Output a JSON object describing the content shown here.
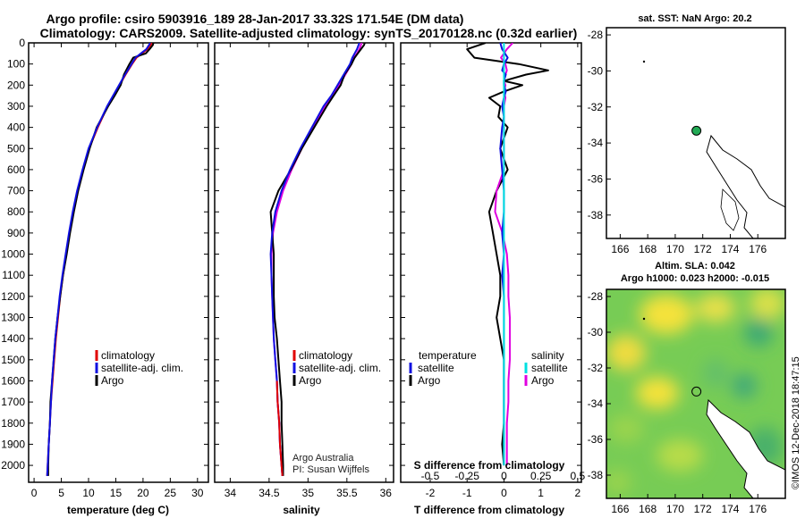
{
  "header": {
    "line1": "Argo profile: csiro 5903916_189 28-Jan-2017 33.32S 171.54E (DM data)",
    "line2": "Climatology: CARS2009. Satellite-adjusted climatology: synTS_20170128.nc (0.32d earlier)"
  },
  "credit": {
    "line1": "Argo Australia",
    "line2": "PI: Susan Wijffels"
  },
  "watermark": "©IMOS 12-Dec-2018 18:47:15",
  "colors": {
    "climatology": "#e00000",
    "satellite": "#1010e0",
    "argo": "#000000",
    "sat_salinity": "#00e0e0",
    "argo_salinity": "#e000e0",
    "land": "#ffffff",
    "marker": "#22aa55"
  },
  "chart_data": [
    {
      "type": "line",
      "id": "temperature",
      "xlabel": "temperature (deg C)",
      "xlim": [
        -1,
        32
      ],
      "ylim": [
        2080,
        0
      ],
      "xticks": [
        "0",
        "5",
        "10",
        "15",
        "20",
        "25",
        "30"
      ],
      "yticks": [
        "0",
        "100",
        "200",
        "300",
        "400",
        "500",
        "600",
        "700",
        "800",
        "900",
        "1000",
        "1100",
        "1200",
        "1300",
        "1400",
        "1500",
        "1600",
        "1700",
        "1800",
        "1900",
        "2000"
      ],
      "depth": [
        0,
        10,
        30,
        50,
        70,
        100,
        150,
        200,
        250,
        300,
        400,
        500,
        600,
        700,
        800,
        900,
        1000,
        1100,
        1200,
        1300,
        1400,
        1500,
        1600,
        1700,
        1800,
        1900,
        2000,
        2050
      ],
      "legend": [
        "climatology",
        "satellite-adj. clim.",
        "Argo"
      ],
      "series": [
        {
          "name": "climatology",
          "values": [
            21.6,
            21.4,
            20.8,
            19.8,
            18.8,
            18.0,
            16.8,
            15.7,
            14.6,
            13.5,
            11.7,
            10.1,
            9.0,
            8.0,
            7.2,
            6.5,
            5.9,
            5.3,
            4.8,
            4.4,
            4.0,
            3.7,
            3.4,
            3.1,
            2.9,
            2.7,
            2.5,
            2.4
          ]
        },
        {
          "name": "satellite-adj. clim.",
          "values": [
            21.3,
            21.1,
            20.6,
            19.6,
            18.6,
            17.9,
            16.7,
            15.6,
            14.5,
            13.4,
            11.6,
            10.0,
            8.9,
            7.9,
            7.1,
            6.4,
            5.8,
            5.2,
            4.7,
            4.3,
            3.9,
            3.6,
            3.3,
            3.1,
            2.9,
            2.7,
            2.5,
            2.4
          ]
        },
        {
          "name": "Argo",
          "values": [
            21.9,
            21.8,
            21.2,
            20.5,
            18.2,
            17.5,
            16.5,
            15.9,
            14.8,
            13.6,
            11.5,
            10.2,
            9.1,
            8.1,
            7.3,
            6.6,
            6.0,
            5.3,
            4.8,
            4.3,
            3.9,
            3.6,
            3.3,
            3.0,
            2.9,
            2.7,
            2.6,
            2.6
          ]
        }
      ]
    },
    {
      "type": "line",
      "id": "salinity",
      "xlabel": "salinity",
      "xlim": [
        33.8,
        36.1
      ],
      "ylim": [
        2080,
        0
      ],
      "xticks": [
        "34",
        "34.5",
        "35",
        "35.5",
        "36"
      ],
      "depth": [
        0,
        10,
        30,
        50,
        70,
        100,
        150,
        200,
        250,
        300,
        400,
        500,
        600,
        700,
        800,
        900,
        1000,
        1100,
        1200,
        1300,
        1400,
        1500,
        1600,
        1700,
        1800,
        1900,
        2000,
        2050
      ],
      "legend": [
        "climatology",
        "satellite-adj. clim.",
        "Argo"
      ],
      "series": [
        {
          "name": "climatology",
          "values": [
            35.69,
            35.68,
            35.66,
            35.63,
            35.59,
            35.56,
            35.48,
            35.4,
            35.32,
            35.22,
            35.07,
            34.92,
            34.79,
            34.68,
            34.6,
            34.55,
            34.53,
            34.53,
            34.54,
            34.55,
            34.56,
            34.58,
            34.6,
            34.61,
            34.63,
            34.64,
            34.66,
            34.67
          ]
        },
        {
          "name": "satellite-adj. clim.",
          "values": [
            35.66,
            35.65,
            35.63,
            35.6,
            35.57,
            35.54,
            35.46,
            35.38,
            35.3,
            35.2,
            35.05,
            34.9,
            34.77,
            34.66,
            34.58,
            34.54,
            34.52,
            34.53,
            34.54,
            34.55,
            34.56,
            34.58,
            34.6,
            34.61,
            34.63,
            34.64,
            34.66,
            34.67
          ]
        },
        {
          "name": "Argo",
          "values": [
            35.73,
            35.72,
            35.68,
            35.64,
            35.6,
            35.56,
            35.47,
            35.42,
            35.33,
            35.24,
            35.08,
            34.92,
            34.78,
            34.62,
            34.52,
            34.54,
            34.56,
            34.56,
            34.56,
            34.57,
            34.6,
            34.62,
            34.64,
            34.66,
            34.66,
            34.67,
            34.68,
            34.68
          ]
        }
      ]
    },
    {
      "type": "line",
      "id": "difference",
      "xlabel": "T difference from climatology",
      "xlabel_s": "S difference from climatology",
      "xlim": [
        -2.8,
        2.1
      ],
      "slim": [
        -0.7,
        0.525
      ],
      "ylim": [
        2080,
        0
      ],
      "xticks": [
        "-2",
        "-1",
        "0",
        "1",
        "2"
      ],
      "sticks": [
        "-0.5",
        "-0.25",
        "0",
        "0.25",
        "0.5"
      ],
      "depth": [
        0,
        30,
        70,
        100,
        130,
        150,
        180,
        200,
        230,
        260,
        300,
        350,
        400,
        500,
        600,
        700,
        800,
        900,
        1000,
        1100,
        1200,
        1300,
        1400,
        1500,
        1600,
        1700,
        1800,
        1900,
        2000
      ],
      "legend_titles": [
        "temperature",
        "salinity"
      ],
      "legend_t": [
        "satellite",
        "Argo"
      ],
      "legend_s": [
        "satellite",
        "Argo"
      ],
      "series": [
        {
          "name": "T satellite",
          "values": [
            -0.1,
            -0.05,
            0.1,
            0.0,
            -0.05,
            0.05,
            0.0,
            0.0,
            0.05,
            0.0,
            -0.05,
            0.0,
            -0.05,
            -0.1,
            -0.05,
            0.0,
            0.0,
            -0.05,
            0.0,
            -0.05,
            0.0,
            0.0,
            0.0,
            0.0,
            0.0,
            0.0,
            0.0,
            0.0,
            0.0
          ]
        },
        {
          "name": "T Argo",
          "values": [
            -0.5,
            -1.0,
            -0.8,
            0.4,
            1.2,
            0.6,
            0.0,
            0.5,
            0.0,
            -0.4,
            -0.1,
            -0.15,
            0.1,
            -0.1,
            0.1,
            -0.2,
            -0.4,
            -0.3,
            -0.2,
            -0.1,
            -0.1,
            -0.2,
            -0.1,
            0.0,
            0.0,
            0.0,
            0.0,
            -0.05,
            0.0
          ]
        },
        {
          "name": "S satellite",
          "values": [
            0.0,
            0.0,
            0.0,
            0.0,
            0.0,
            0.0,
            0.0,
            0.0,
            0.0,
            0.0,
            0.0,
            0.0,
            0.0,
            0.0,
            0.0,
            0.0,
            0.0,
            0.0,
            0.0,
            0.0,
            0.0,
            0.0,
            0.0,
            0.0,
            0.0,
            0.0,
            0.0,
            0.0,
            0.0
          ]
        },
        {
          "name": "S Argo",
          "values": [
            0.06,
            0.02,
            -0.02,
            0.01,
            0.02,
            0.01,
            0.0,
            0.01,
            0.0,
            0.01,
            0.0,
            0.0,
            0.0,
            0.0,
            0.0,
            -0.05,
            -0.06,
            -0.01,
            0.02,
            0.03,
            0.03,
            0.04,
            0.04,
            0.04,
            0.03,
            0.03,
            0.02,
            0.02,
            0.02
          ]
        }
      ]
    },
    {
      "type": "scatter",
      "id": "sst_map",
      "title": "sat. SST: NaN Argo: 20.2",
      "xlim": [
        165,
        178
      ],
      "ylim": [
        -39.3,
        -27.6
      ],
      "xticks": [
        "166",
        "168",
        "170",
        "172",
        "174",
        "176"
      ],
      "yticks": [
        "-28",
        "-30",
        "-32",
        "-34",
        "-36",
        "-38"
      ],
      "profile_location": [
        171.54,
        -33.32
      ]
    },
    {
      "type": "heatmap",
      "id": "sla_map",
      "title": "Altim. SLA: 0.042",
      "subtitle": "Argo h1000: 0.023 h2000: -0.015",
      "xlim": [
        165,
        178
      ],
      "ylim": [
        -39.3,
        -27.6
      ],
      "xticks": [
        "166",
        "168",
        "170",
        "172",
        "174",
        "176"
      ],
      "yticks": [
        "-28",
        "-30",
        "-32",
        "-34",
        "-36",
        "-38"
      ],
      "profile_location": [
        171.54,
        -33.32
      ]
    }
  ]
}
